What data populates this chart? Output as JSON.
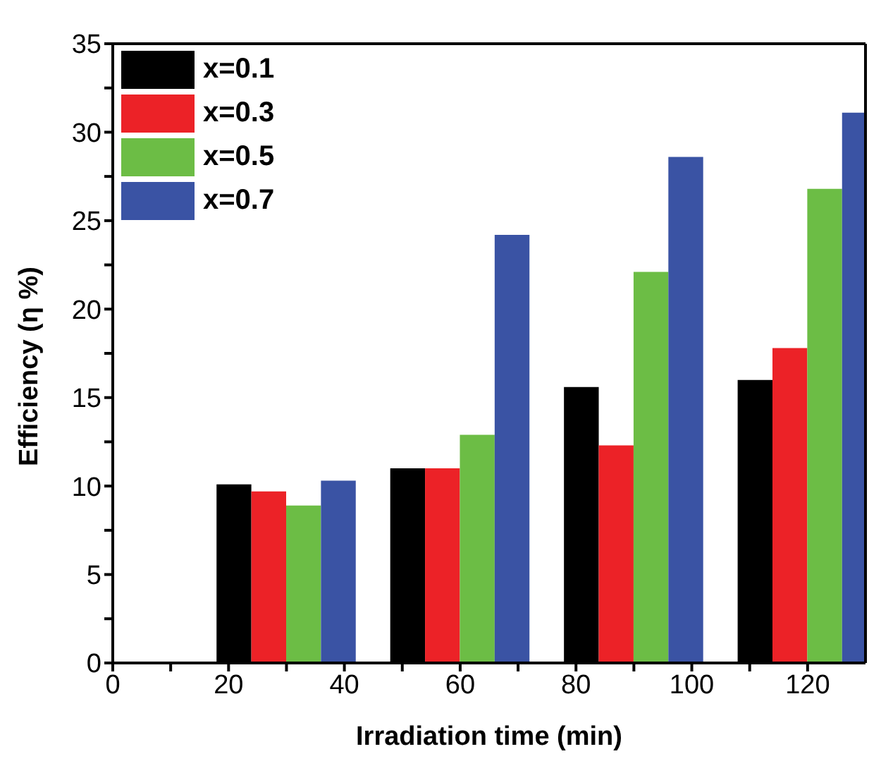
{
  "chart_data": {
    "type": "bar",
    "xlabel": "Irradiation time (min)",
    "ylabel": "Efficiency (η %)",
    "x": [
      30,
      60,
      90,
      120
    ],
    "series": [
      {
        "name": "x=0.1",
        "color": "#000000",
        "values": [
          10.1,
          11.0,
          15.6,
          16.0
        ]
      },
      {
        "name": "x=0.3",
        "color": "#ec2227",
        "values": [
          9.7,
          11.0,
          12.3,
          17.8
        ]
      },
      {
        "name": "x=0.5",
        "color": "#6cbd45",
        "values": [
          8.9,
          12.9,
          22.1,
          26.8
        ]
      },
      {
        "name": "x=0.7",
        "color": "#3a53a4",
        "values": [
          10.3,
          24.2,
          28.6,
          31.1
        ]
      }
    ],
    "xlim": [
      0,
      130
    ],
    "xticks": [
      0,
      {
        "value": 10,
        "label": null
      },
      20,
      {
        "value": 30,
        "label": null
      },
      40,
      {
        "value": 50,
        "label": null
      },
      60,
      {
        "value": 70,
        "label": null
      },
      80,
      {
        "value": 90,
        "label": null
      },
      100,
      {
        "value": 110,
        "label": null
      },
      120
    ],
    "ylim": [
      0,
      35
    ],
    "yticks": [
      0,
      {
        "value": 2.5,
        "label": null
      },
      5,
      {
        "value": 7.5,
        "label": null
      },
      10,
      {
        "value": 12.5,
        "label": null
      },
      15,
      {
        "value": 17.5,
        "label": null
      },
      20,
      {
        "value": 22.5,
        "label": null
      },
      25,
      {
        "value": 27.5,
        "label": null
      },
      30,
      {
        "value": 32.5,
        "label": null
      },
      35
    ],
    "grid": false,
    "legend": "top left"
  }
}
